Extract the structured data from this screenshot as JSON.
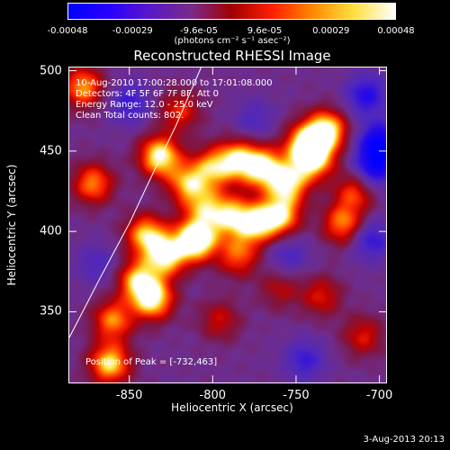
{
  "chart_data": {
    "type": "heatmap",
    "title": "Reconstructed RHESSI Image",
    "xlabel": "Heliocentric X (arcsec)",
    "ylabel": "Heliocentric Y (arcsec)",
    "xlim": [
      -886,
      -696
    ],
    "ylim": [
      306,
      502
    ],
    "x_ticks": [
      "-850",
      "-800",
      "-750",
      "-700"
    ],
    "x_tick_values": [
      -850,
      -800,
      -750,
      -700
    ],
    "y_ticks": [
      "350",
      "400",
      "450",
      "500"
    ],
    "y_tick_values": [
      350,
      400,
      450,
      500
    ],
    "colorbar": {
      "ticks": [
        "-0.00048",
        "-0.00029",
        "-9.6e-05",
        "9.6e-05",
        "0.00029",
        "0.00048"
      ],
      "tick_values": [
        -0.00048,
        -0.00029,
        -9.6e-05,
        9.6e-05,
        0.00029,
        0.00048
      ],
      "unit_label": "(photons cm⁻² s⁻¹ asec⁻²)",
      "colors": [
        "#0000ff",
        "#2a00ff",
        "#5a18c8",
        "#7a2a8a",
        "#a00000",
        "#ff2000",
        "#ff8a00",
        "#ffe040",
        "#ffffff"
      ]
    },
    "info_lines": [
      "10-Aug-2010 17:00:28.000 to 17:01:08.000",
      "Detectors: 4F 5F 6F 7F 8F, Att 0",
      "Energy Range: 12.0 - 25.0 keV",
      "Clean     Total counts: 802."
    ],
    "peak_label": "Position of Peak = [-732,463]",
    "peak_position": [
      -732,
      463
    ],
    "blobs": [
      {
        "x": -832,
        "y": 447,
        "v": 1.0
      },
      {
        "x": -815,
        "y": 430,
        "v": 0.75
      },
      {
        "x": -800,
        "y": 440,
        "v": 0.7
      },
      {
        "x": -785,
        "y": 445,
        "v": 0.8
      },
      {
        "x": -770,
        "y": 440,
        "v": 0.95
      },
      {
        "x": -755,
        "y": 430,
        "v": 0.85
      },
      {
        "x": -740,
        "y": 445,
        "v": 0.9
      },
      {
        "x": -732,
        "y": 463,
        "v": 1.0
      },
      {
        "x": -745,
        "y": 455,
        "v": 0.8
      },
      {
        "x": -760,
        "y": 410,
        "v": 0.9
      },
      {
        "x": -775,
        "y": 405,
        "v": 0.85
      },
      {
        "x": -790,
        "y": 410,
        "v": 0.75
      },
      {
        "x": -805,
        "y": 415,
        "v": 0.6
      },
      {
        "x": -840,
        "y": 398,
        "v": 0.85
      },
      {
        "x": -828,
        "y": 385,
        "v": 0.9
      },
      {
        "x": -812,
        "y": 395,
        "v": 0.7
      },
      {
        "x": -845,
        "y": 370,
        "v": 0.8
      },
      {
        "x": -836,
        "y": 358,
        "v": 0.95
      },
      {
        "x": -860,
        "y": 345,
        "v": 0.7
      },
      {
        "x": -862,
        "y": 318,
        "v": 0.9
      },
      {
        "x": -872,
        "y": 430,
        "v": 0.7
      },
      {
        "x": -878,
        "y": 490,
        "v": 0.75
      },
      {
        "x": -820,
        "y": 475,
        "v": 0.5
      },
      {
        "x": -808,
        "y": 395,
        "v": 0.55
      },
      {
        "x": -785,
        "y": 385,
        "v": 0.6
      },
      {
        "x": -722,
        "y": 405,
        "v": 0.7
      },
      {
        "x": -715,
        "y": 425,
        "v": 0.55
      },
      {
        "x": -735,
        "y": 360,
        "v": 0.45
      },
      {
        "x": -760,
        "y": 365,
        "v": 0.35
      },
      {
        "x": -796,
        "y": 345,
        "v": 0.4
      },
      {
        "x": -710,
        "y": 335,
        "v": 0.45
      },
      {
        "x": -700,
        "y": 455,
        "v": -0.9
      },
      {
        "x": -703,
        "y": 440,
        "v": -0.7
      },
      {
        "x": -708,
        "y": 485,
        "v": -0.6
      },
      {
        "x": -705,
        "y": 395,
        "v": -0.5
      },
      {
        "x": -755,
        "y": 385,
        "v": -0.35
      },
      {
        "x": -745,
        "y": 320,
        "v": -0.45
      },
      {
        "x": -850,
        "y": 480,
        "v": -0.45
      },
      {
        "x": -870,
        "y": 380,
        "v": -0.3
      },
      {
        "x": -775,
        "y": 470,
        "v": -0.3
      }
    ],
    "limb_arc": [
      [
        -886,
        334
      ],
      [
        -868,
        370
      ],
      [
        -850,
        405
      ],
      [
        -835,
        438
      ],
      [
        -822,
        466
      ],
      [
        -812,
        490
      ],
      [
        -807,
        502
      ]
    ]
  },
  "footer_date": "3-Aug-2013 20:13"
}
